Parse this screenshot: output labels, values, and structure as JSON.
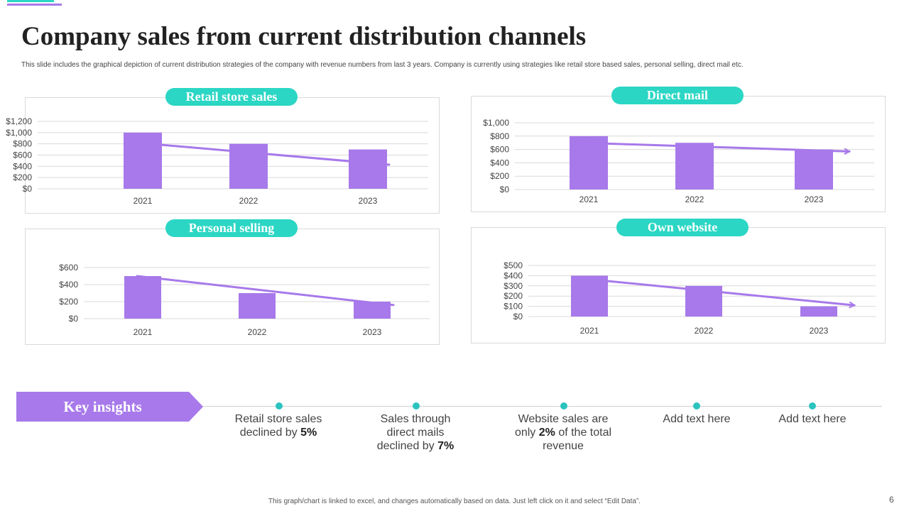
{
  "title": "Company sales from current distribution channels",
  "subtitle": "This slide includes the graphical depiction of current distribution strategies of the company with revenue numbers from last 3 years. Company is currently using strategies like retail store based sales, personal selling, direct mail etc.",
  "colors": {
    "bar": "#a779ea",
    "trend": "#a779ea",
    "pill": "#2bd6c4",
    "dot": "#2bc3c0",
    "grid": "#d9d9d9"
  },
  "chart_data": [
    {
      "type": "bar",
      "title": "Retail store sales",
      "categories": [
        "2021",
        "2022",
        "2023"
      ],
      "values": [
        1000,
        800,
        700
      ],
      "ylim": [
        0,
        1200
      ],
      "yticks": [
        "$0",
        "$200",
        "$400",
        "$600",
        "$800",
        "$1,000",
        "$1,200"
      ],
      "trend": [
        820,
        620,
        430
      ],
      "trend_arrow": false
    },
    {
      "type": "bar",
      "title": "Direct mail",
      "categories": [
        "2021",
        "2022",
        "2023"
      ],
      "values": [
        800,
        700,
        600
      ],
      "ylim": [
        0,
        1000
      ],
      "yticks": [
        "$0",
        "$200",
        "$400",
        "$600",
        "$800",
        "$1,000"
      ],
      "trend": [
        700,
        650,
        570
      ],
      "trend_arrow": true
    },
    {
      "type": "bar",
      "title": "Personal selling",
      "categories": [
        "2021",
        "2022",
        "2023"
      ],
      "values": [
        500,
        300,
        200
      ],
      "ylim": [
        0,
        600
      ],
      "yticks": [
        "$0",
        "$200",
        "$400",
        "$600"
      ],
      "trend": [
        500,
        340,
        160
      ],
      "trend_arrow": false
    },
    {
      "type": "bar",
      "title": "Own website",
      "categories": [
        "2021",
        "2022",
        "2023"
      ],
      "values": [
        400,
        300,
        100
      ],
      "ylim": [
        0,
        500
      ],
      "yticks": [
        "$0",
        "$100",
        "$200",
        "$300",
        "$400",
        "$500"
      ],
      "trend": [
        370,
        260,
        110
      ],
      "trend_arrow": true
    }
  ],
  "key_insights": {
    "label": "Key insights",
    "items": [
      {
        "pre": "Retail store sales declined by ",
        "bold": "5%",
        "post": ""
      },
      {
        "pre": "Sales through direct mails declined by ",
        "bold": "7%",
        "post": ""
      },
      {
        "pre": "Website sales are only ",
        "bold": "2%",
        "post": " of the total revenue"
      },
      {
        "pre": "Add text here",
        "bold": "",
        "post": ""
      },
      {
        "pre": "Add text here",
        "bold": "",
        "post": ""
      }
    ]
  },
  "footer": "This graph/chart is linked to excel, and changes automatically based on data. Just left click on it and select “Edit Data”.",
  "page_number": "6"
}
